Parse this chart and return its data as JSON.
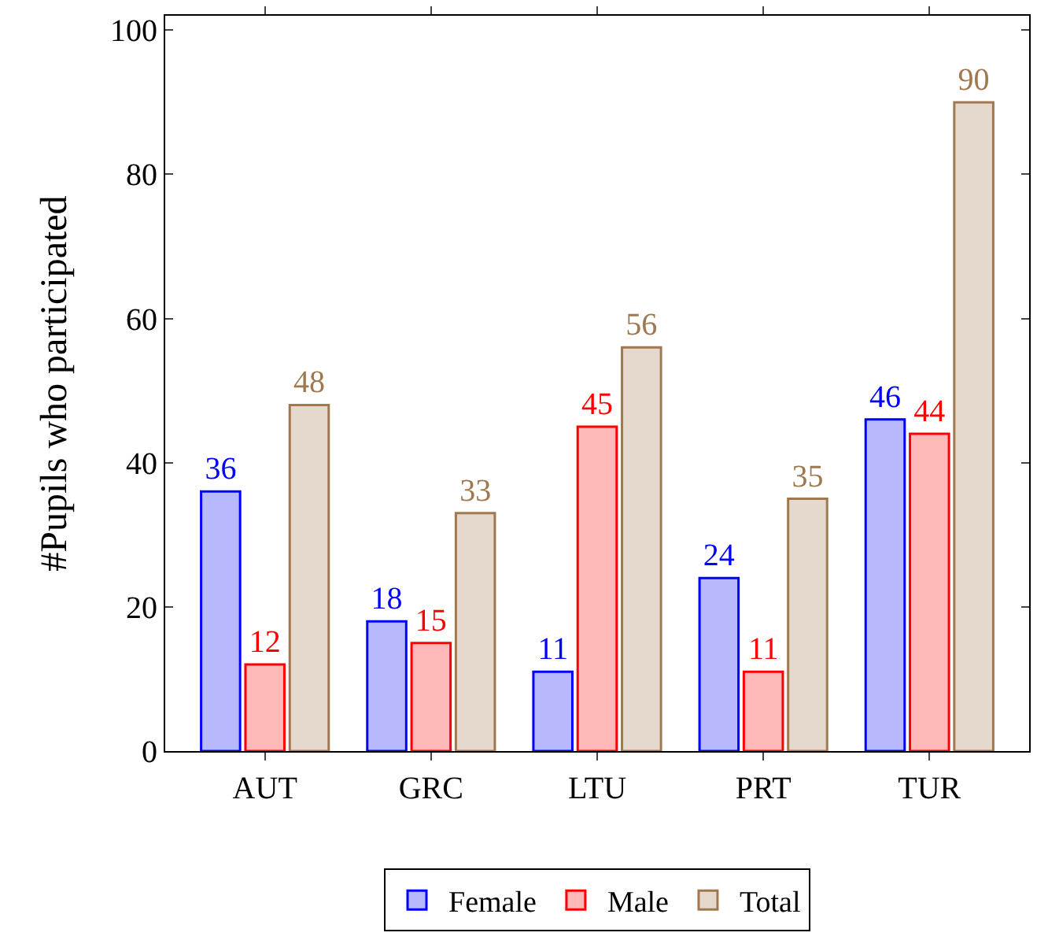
{
  "chart_data": {
    "type": "bar",
    "ylabel": "#Pupils who participated",
    "categories": [
      "AUT",
      "GRC",
      "LTU",
      "PRT",
      "TUR"
    ],
    "series": [
      {
        "name": "Female",
        "color": "#0000ff",
        "values": [
          36,
          18,
          11,
          24,
          46
        ]
      },
      {
        "name": "Male",
        "color": "#ff0000",
        "values": [
          12,
          15,
          45,
          11,
          44
        ]
      },
      {
        "name": "Total",
        "color": "#a07850",
        "values": [
          48,
          33,
          56,
          35,
          90
        ]
      }
    ],
    "ylim": [
      0,
      102
    ],
    "yticks": [
      0,
      20,
      40,
      60,
      80,
      100
    ],
    "legend": "bottom",
    "data_labels": true
  }
}
